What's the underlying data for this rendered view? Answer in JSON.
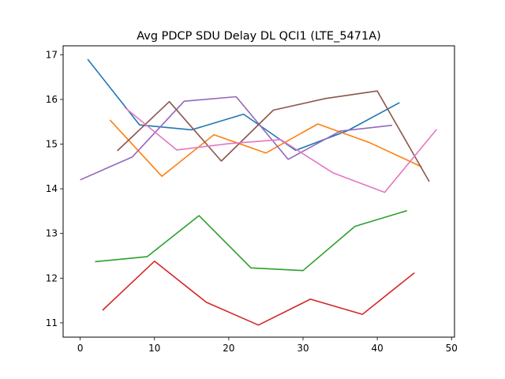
{
  "chart_data": {
    "type": "line",
    "title": "Avg PDCP SDU Delay DL QCI1 (LTE_5471A)",
    "xlabel": "",
    "ylabel": "",
    "xlim": [
      -2.3,
      50.4
    ],
    "ylim": [
      10.68,
      17.2
    ],
    "xticks": [
      0,
      10,
      20,
      30,
      40,
      50
    ],
    "yticks": [
      11,
      12,
      13,
      14,
      15,
      16,
      17
    ],
    "grid": false,
    "series": [
      {
        "color": "#1f77b4",
        "x": [
          1,
          8,
          15,
          22,
          29,
          36,
          43
        ],
        "y": [
          16.9,
          15.43,
          15.32,
          15.67,
          14.86,
          15.3,
          15.93
        ]
      },
      {
        "color": "#ff7f0e",
        "x": [
          4,
          11,
          18,
          25,
          32,
          39,
          46
        ],
        "y": [
          15.54,
          14.28,
          15.21,
          14.8,
          15.45,
          15.03,
          14.49
        ]
      },
      {
        "color": "#2ca02c",
        "x": [
          2,
          9,
          16,
          23,
          30,
          37,
          44
        ],
        "y": [
          12.37,
          12.48,
          13.4,
          12.23,
          12.17,
          13.16,
          13.51
        ]
      },
      {
        "color": "#d62728",
        "x": [
          3,
          10,
          17,
          24,
          31,
          38,
          45
        ],
        "y": [
          11.28,
          12.38,
          11.46,
          10.95,
          11.53,
          11.19,
          12.12
        ]
      },
      {
        "color": "#9467bd",
        "x": [
          0,
          7,
          14,
          21,
          28,
          35,
          42
        ],
        "y": [
          14.2,
          14.71,
          15.96,
          16.06,
          14.66,
          15.29,
          15.42
        ]
      },
      {
        "color": "#8c564b",
        "x": [
          5,
          12,
          19,
          26,
          33,
          40,
          47
        ],
        "y": [
          14.85,
          15.95,
          14.62,
          15.76,
          16.02,
          16.19,
          14.16
        ]
      },
      {
        "color": "#e377c2",
        "x": [
          6,
          13,
          20,
          27,
          34,
          41,
          48
        ],
        "y": [
          15.82,
          14.87,
          15.01,
          15.1,
          14.36,
          13.92,
          15.33
        ]
      }
    ]
  }
}
